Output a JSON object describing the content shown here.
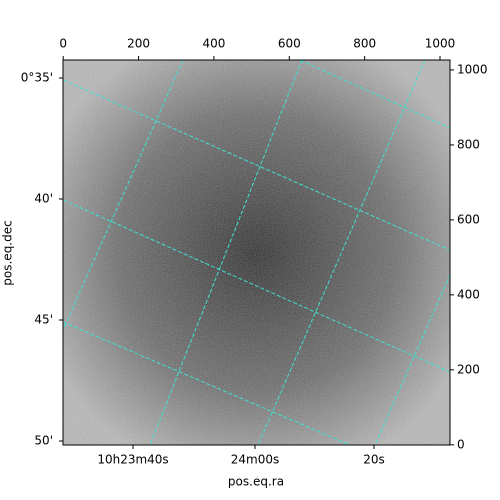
{
  "chart_data": {
    "type": "image",
    "xlabel": "pos.eq.ra",
    "ylabel": "pos.eq.dec",
    "xlim": [
      -0.5,
      1026.5
    ],
    "ylim": [
      -0.5,
      1026.5
    ],
    "xticks_top": [
      0,
      200,
      400,
      600,
      800,
      1000
    ],
    "yticks_right": [
      0,
      200,
      400,
      600,
      800,
      1000
    ],
    "ra_tick_labels": [
      "10h23m40s",
      "24m00s",
      "20s"
    ],
    "dec_tick_labels": [
      "0°35'",
      "40'",
      "45'",
      "50'"
    ],
    "grid_color": "#40e0d0"
  }
}
